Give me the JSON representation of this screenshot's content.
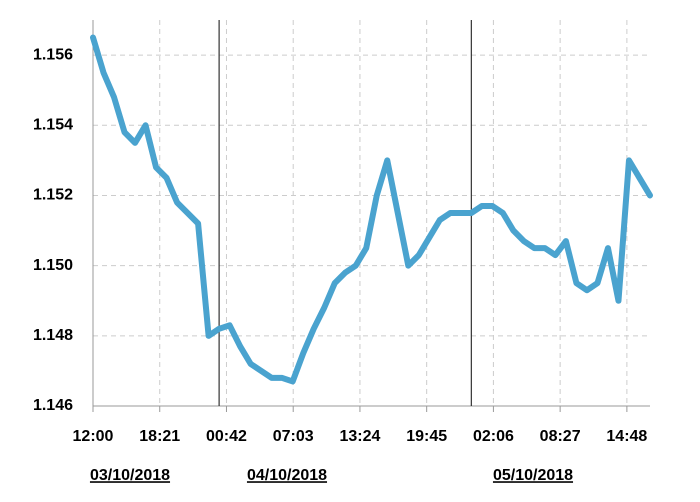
{
  "chart_data": {
    "type": "line",
    "x": [
      "03/10/2018 12:00",
      "03/10/2018 13:00",
      "03/10/2018 14:00",
      "03/10/2018 15:00",
      "03/10/2018 16:00",
      "03/10/2018 17:00",
      "03/10/2018 18:00",
      "03/10/2018 19:00",
      "03/10/2018 20:00",
      "03/10/2018 21:00",
      "03/10/2018 22:00",
      "03/10/2018 23:00",
      "04/10/2018 00:00",
      "04/10/2018 01:00",
      "04/10/2018 02:00",
      "04/10/2018 03:00",
      "04/10/2018 04:00",
      "04/10/2018 05:00",
      "04/10/2018 06:00",
      "04/10/2018 07:00",
      "04/10/2018 08:00",
      "04/10/2018 09:00",
      "04/10/2018 10:00",
      "04/10/2018 11:00",
      "04/10/2018 12:00",
      "04/10/2018 13:00",
      "04/10/2018 14:00",
      "04/10/2018 15:00",
      "04/10/2018 16:00",
      "04/10/2018 17:00",
      "04/10/2018 18:00",
      "04/10/2018 19:00",
      "04/10/2018 20:00",
      "04/10/2018 21:00",
      "04/10/2018 22:00",
      "04/10/2018 23:00",
      "05/10/2018 00:00",
      "05/10/2018 01:00",
      "05/10/2018 02:00",
      "05/10/2018 03:00",
      "05/10/2018 04:00",
      "05/10/2018 05:00",
      "05/10/2018 06:00",
      "05/10/2018 07:00",
      "05/10/2018 08:00",
      "05/10/2018 09:00",
      "05/10/2018 10:00",
      "05/10/2018 11:00",
      "05/10/2018 12:00",
      "05/10/2018 13:00",
      "05/10/2018 14:00",
      "05/10/2018 15:00",
      "05/10/2018 16:00",
      "05/10/2018 17:00"
    ],
    "series": [
      {
        "color": "#4aa3cf",
        "values": [
          1.1565,
          1.1555,
          1.1548,
          1.1538,
          1.1535,
          1.154,
          1.1528,
          1.1525,
          1.1518,
          1.1515,
          1.1512,
          1.148,
          1.1482,
          1.1483,
          1.1477,
          1.1472,
          1.147,
          1.1468,
          1.1468,
          1.1467,
          1.1475,
          1.1482,
          1.1488,
          1.1495,
          1.1498,
          1.15,
          1.1505,
          1.152,
          1.153,
          1.1515,
          1.15,
          1.1503,
          1.1508,
          1.1513,
          1.1515,
          1.1515,
          1.1515,
          1.1517,
          1.1517,
          1.1515,
          1.151,
          1.1507,
          1.1505,
          1.1505,
          1.1503,
          1.1507,
          1.1495,
          1.1493,
          1.1495,
          1.1505,
          1.149,
          1.153,
          1.1525,
          1.152
        ]
      }
    ],
    "xlim": [
      "03/10/2018 12:00",
      "05/10/2018 17:00"
    ],
    "xticks": [
      {
        "value": "03/10/2018 12:00",
        "label": "12:00"
      },
      {
        "value": "03/10/2018 18:21",
        "label": "18:21"
      },
      {
        "value": "04/10/2018 00:42",
        "label": "00:42"
      },
      {
        "value": "04/10/2018 07:03",
        "label": "07:03"
      },
      {
        "value": "04/10/2018 13:24",
        "label": "13:24"
      },
      {
        "value": "04/10/2018 19:45",
        "label": "19:45"
      },
      {
        "value": "05/10/2018 02:06",
        "label": "02:06"
      },
      {
        "value": "05/10/2018 08:27",
        "label": "08:27"
      },
      {
        "value": "05/10/2018 14:48",
        "label": "14:48"
      }
    ],
    "ylim": [
      1.146,
      1.157
    ],
    "yticks": [
      {
        "value": 1.146,
        "label": "1.146"
      },
      {
        "value": 1.148,
        "label": "1.148"
      },
      {
        "value": 1.15,
        "label": "1.150"
      },
      {
        "value": 1.152,
        "label": "1.152"
      },
      {
        "value": 1.154,
        "label": "1.154"
      },
      {
        "value": 1.156,
        "label": "1.156"
      }
    ],
    "day_lines": [
      "04/10/2018 00:00",
      "05/10/2018 00:00"
    ],
    "date_labels": [
      "03/10/2018",
      "04/10/2018",
      "05/10/2018"
    ],
    "grid": true
  }
}
